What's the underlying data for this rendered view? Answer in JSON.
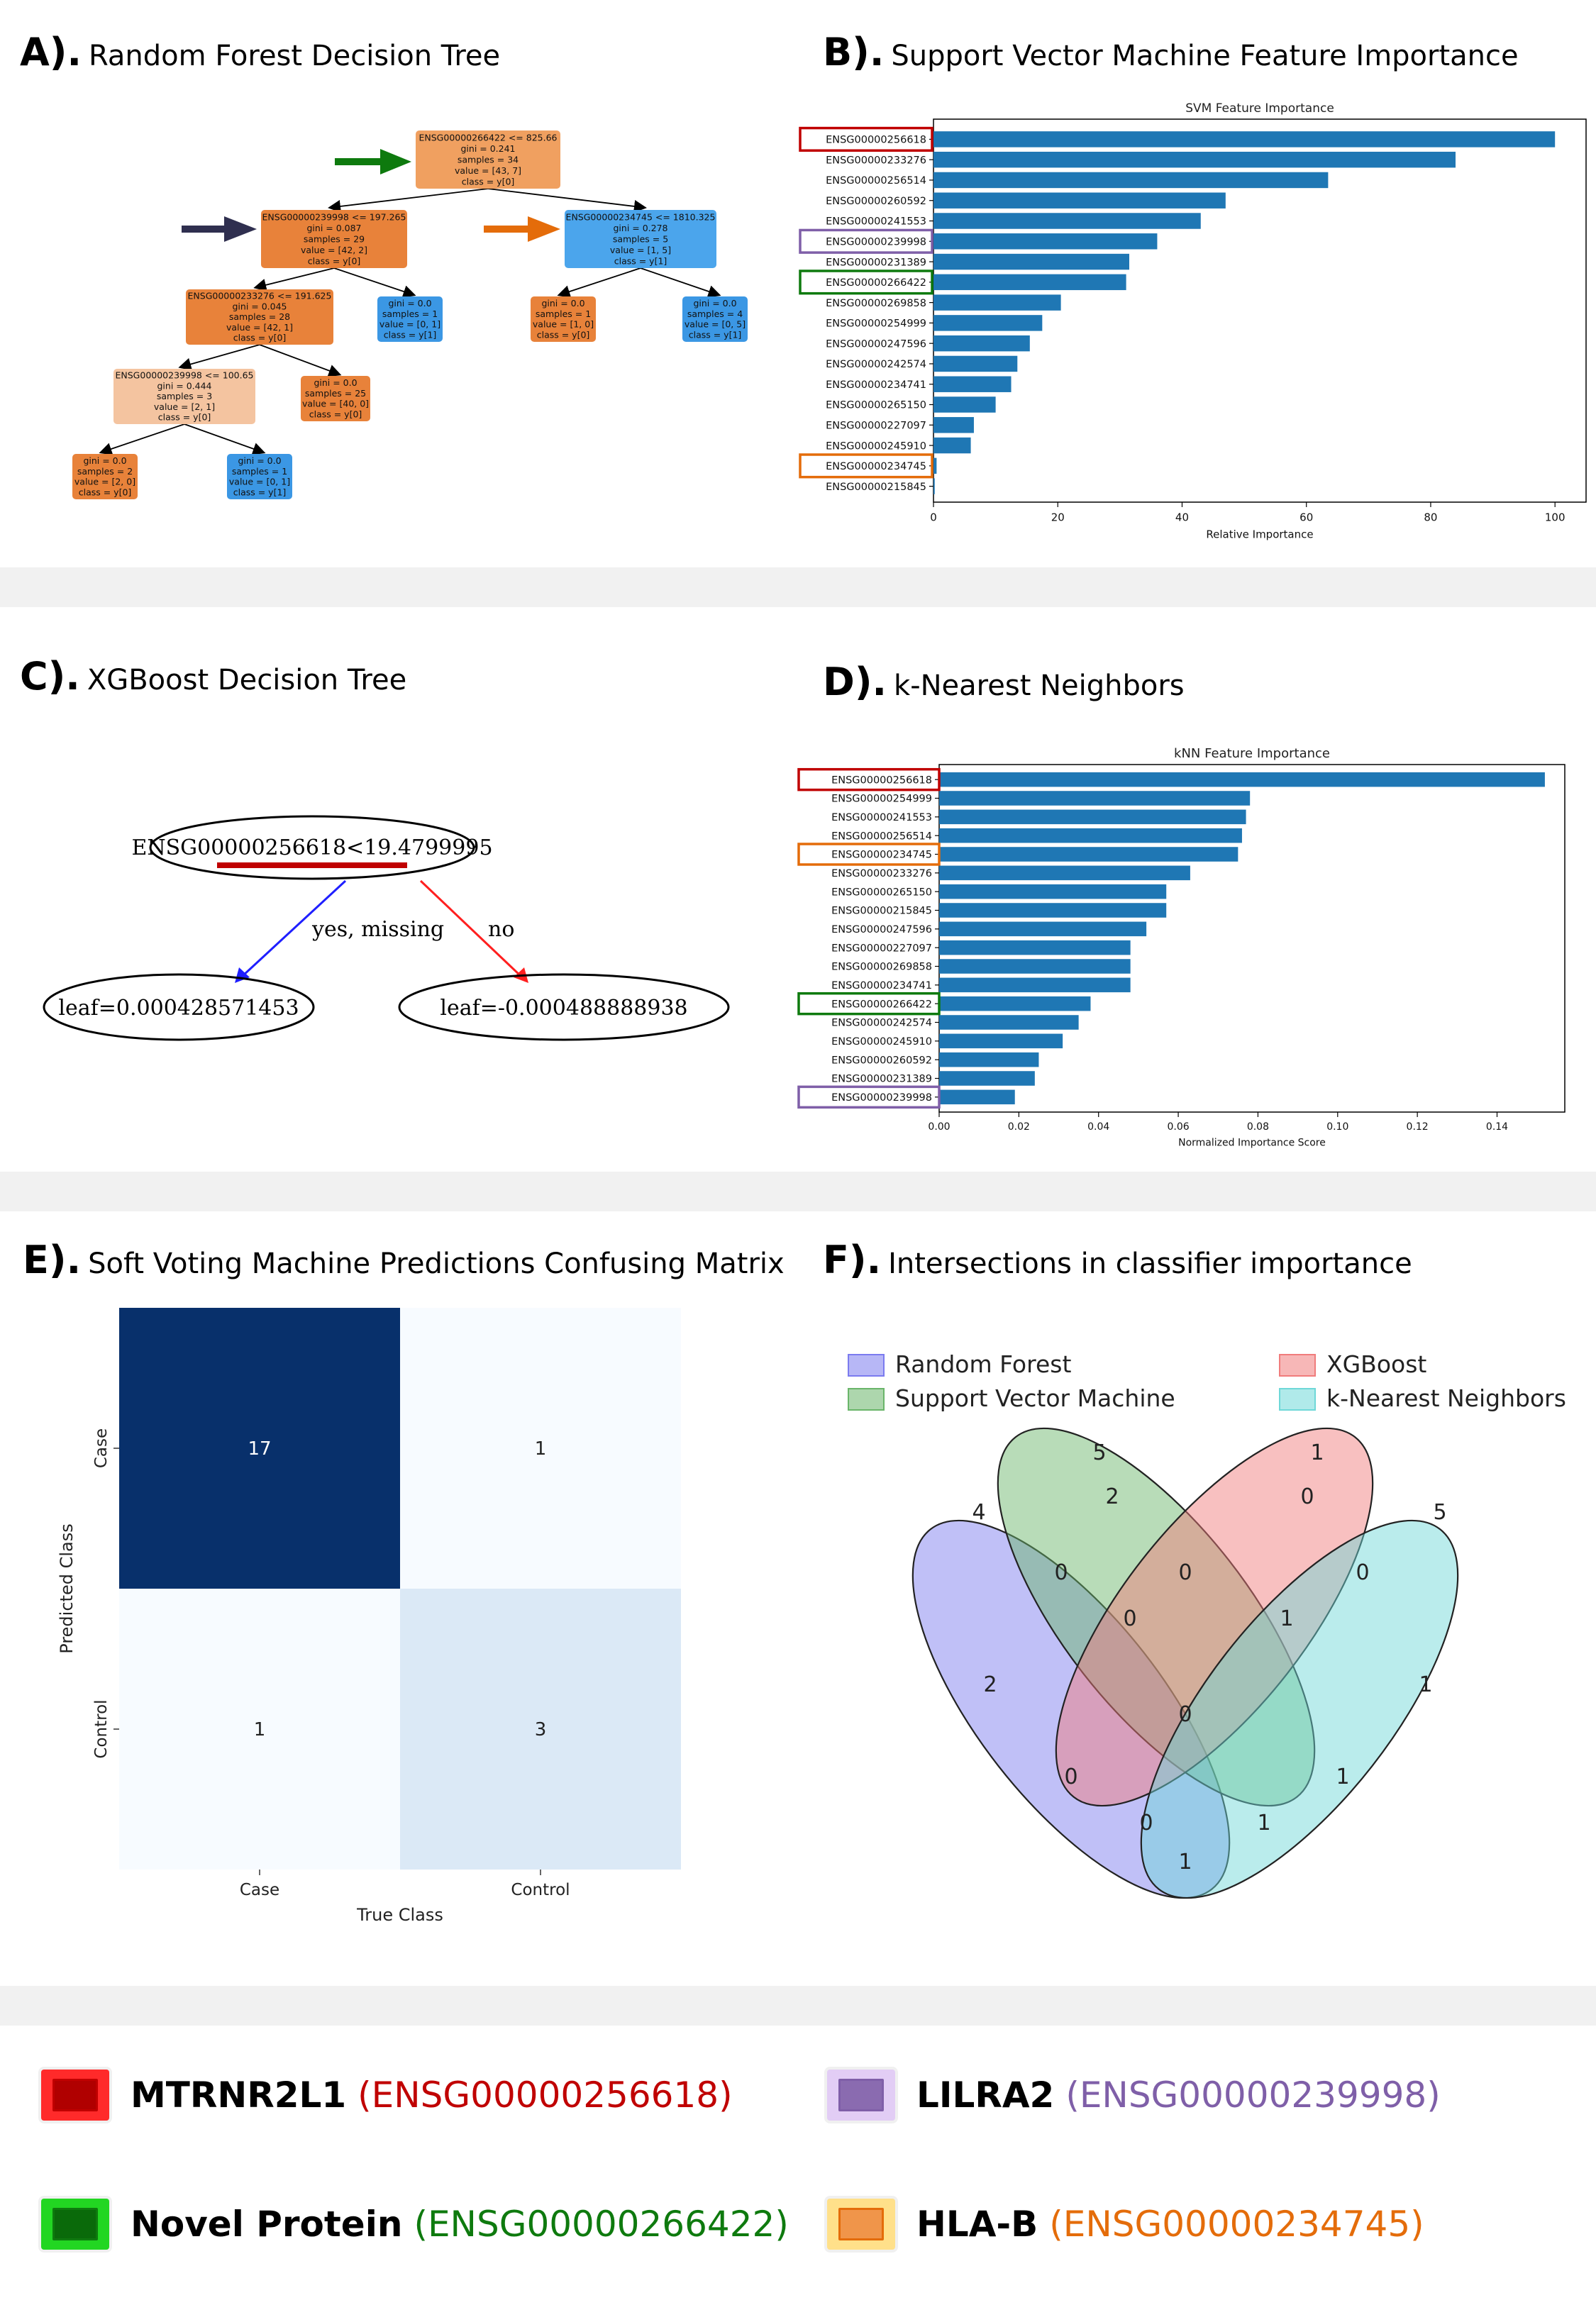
{
  "colors": {
    "red": "#c00000",
    "green": "#0e7a0e",
    "purple": "#7f5fa8",
    "orange": "#e46c0a",
    "bar": "#1f77b4",
    "heat_dark": "#08306b",
    "heat_light": "#f7fbff",
    "heat_mid": "#dbe9f6"
  },
  "panels": {
    "a": {
      "letter": "A).",
      "title": "Random Forest Decision Tree"
    },
    "b": {
      "letter": "B).",
      "title": "Support Vector Machine Feature Importance"
    },
    "c": {
      "letter": "C).",
      "title": "XGBoost Decision Tree"
    },
    "d": {
      "letter": "D).",
      "title": "k-Nearest Neighbors"
    },
    "e": {
      "letter": "E).",
      "title": "Soft Voting Machine Predictions Confusing Matrix"
    },
    "f": {
      "letter": "F).",
      "title": "Intersections in classifier importance"
    }
  },
  "rf_tree": {
    "nodes": [
      {
        "lines": [
          "ENSG00000266422 <= 825.66",
          "gini = 0.241",
          "samples = 34",
          "value = [43, 7]",
          "class = y[0]"
        ]
      },
      {
        "lines": [
          "ENSG00000239998 <= 197.265",
          "gini = 0.087",
          "samples = 29",
          "value = [42, 2]",
          "class = y[0]"
        ]
      },
      {
        "lines": [
          "ENSG00000234745 <= 1810.325",
          "gini = 0.278",
          "samples = 5",
          "value = [1, 5]",
          "class = y[1]"
        ]
      },
      {
        "lines": [
          "ENSG00000233276 <= 191.625",
          "gini = 0.045",
          "samples = 28",
          "value = [42, 1]",
          "class = y[0]"
        ]
      },
      {
        "lines": [
          "gini = 0.0",
          "samples = 1",
          "value = [0, 1]",
          "class = y[1]"
        ]
      },
      {
        "lines": [
          "gini = 0.0",
          "samples = 1",
          "value = [1, 0]",
          "class = y[0]"
        ]
      },
      {
        "lines": [
          "gini = 0.0",
          "samples = 4",
          "value = [0, 5]",
          "class = y[1]"
        ]
      },
      {
        "lines": [
          "ENSG00000239998 <= 100.65",
          "gini = 0.444",
          "samples = 3",
          "value = [2, 1]",
          "class = y[0]"
        ]
      },
      {
        "lines": [
          "gini = 0.0",
          "samples = 25",
          "value = [40, 0]",
          "class = y[0]"
        ]
      },
      {
        "lines": [
          "gini = 0.0",
          "samples = 2",
          "value = [2, 0]",
          "class = y[0]"
        ]
      },
      {
        "lines": [
          "gini = 0.0",
          "samples = 1",
          "value = [0, 1]",
          "class = y[1]"
        ]
      }
    ]
  },
  "xgb_tree": {
    "root": "ENSG00000256618<19.4799995",
    "left_leaf": "leaf=0.000428571453",
    "right_leaf": "leaf=-0.000488888938",
    "yes_label": "yes, missing",
    "no_label": "no"
  },
  "chart_data": [
    {
      "id": "svm",
      "type": "bar",
      "orientation": "horizontal",
      "title": "SVM Feature Importance",
      "xlabel": "Relative Importance",
      "ylabel": "",
      "xlim": [
        0,
        105
      ],
      "xticks": [
        "0",
        "20",
        "40",
        "60",
        "80",
        "100"
      ],
      "categories": [
        "ENSG00000256618",
        "ENSG00000233276",
        "ENSG00000256514",
        "ENSG00000260592",
        "ENSG00000241553",
        "ENSG00000239998",
        "ENSG00000231389",
        "ENSG00000266422",
        "ENSG00000269858",
        "ENSG00000254999",
        "ENSG00000247596",
        "ENSG00000242574",
        "ENSG00000234741",
        "ENSG00000265150",
        "ENSG00000227097",
        "ENSG00000245910",
        "ENSG00000234745",
        "ENSG00000215845"
      ],
      "values": [
        100,
        84,
        63.5,
        47,
        43,
        36,
        31.5,
        31,
        20.5,
        17.5,
        15.5,
        13.5,
        12.5,
        10,
        6.5,
        6,
        0.5,
        0.2
      ]
    },
    {
      "id": "knn",
      "type": "bar",
      "orientation": "horizontal",
      "title": "kNN Feature Importance",
      "xlabel": "Normalized Importance Score",
      "ylabel": "",
      "xlim": [
        0,
        0.157
      ],
      "xticks": [
        "0.00",
        "0.02",
        "0.04",
        "0.06",
        "0.08",
        "0.10",
        "0.12",
        "0.14"
      ],
      "categories": [
        "ENSG00000256618",
        "ENSG00000254999",
        "ENSG00000241553",
        "ENSG00000256514",
        "ENSG00000234745",
        "ENSG00000233276",
        "ENSG00000265150",
        "ENSG00000215845",
        "ENSG00000247596",
        "ENSG00000227097",
        "ENSG00000269858",
        "ENSG00000234741",
        "ENSG00000266422",
        "ENSG00000242574",
        "ENSG00000245910",
        "ENSG00000260592",
        "ENSG00000231389",
        "ENSG00000239998"
      ],
      "values": [
        0.152,
        0.078,
        0.077,
        0.076,
        0.075,
        0.063,
        0.057,
        0.057,
        0.052,
        0.048,
        0.048,
        0.048,
        0.038,
        0.035,
        0.031,
        0.025,
        0.024,
        0.019
      ]
    },
    {
      "id": "confusion",
      "type": "heatmap",
      "title": "Soft Voting Machine Predictions Confusing Matrix",
      "xlabel": "True Class",
      "ylabel": "Predicted Class",
      "x_categories": [
        "Case",
        "Control"
      ],
      "y_categories": [
        "Case",
        "Control"
      ],
      "values": [
        [
          17,
          1
        ],
        [
          1,
          3
        ]
      ]
    },
    {
      "id": "venn",
      "type": "venn",
      "title": "Intersections in classifier importance",
      "sets": [
        {
          "name": "Random Forest",
          "color": "#7b7bef",
          "total": "4"
        },
        {
          "name": "Support Vector Machine",
          "color": "#6ab56a",
          "total": "5"
        },
        {
          "name": "XGBoost",
          "color": "#f07c7c",
          "total": "1"
        },
        {
          "name": "k-Nearest Neighbors",
          "color": "#6fd8d8",
          "total": "5"
        }
      ],
      "regions": [
        {
          "sets": "RF only",
          "value": "2"
        },
        {
          "sets": "SVM only",
          "value": "2"
        },
        {
          "sets": "XGB only",
          "value": "0"
        },
        {
          "sets": "kNN only",
          "value": "1"
        },
        {
          "sets": "RF & SVM",
          "value": "0"
        },
        {
          "sets": "SVM & XGB",
          "value": "0"
        },
        {
          "sets": "XGB & kNN",
          "value": "0"
        },
        {
          "sets": "RF & SVM & XGB",
          "value": "0"
        },
        {
          "sets": "SVM & XGB & kNN",
          "value": "1"
        },
        {
          "sets": "all four",
          "value": "0"
        },
        {
          "sets": "RF & XGB",
          "value": "0"
        },
        {
          "sets": "SVM & kNN",
          "value": "1"
        },
        {
          "sets": "RF & XGB & kNN",
          "value": "0"
        },
        {
          "sets": "RF & SVM & kNN",
          "value": "1"
        },
        {
          "sets": "RF & kNN",
          "value": "1"
        }
      ]
    }
  ],
  "gene_legend": [
    {
      "name": "MTRNR2L1",
      "id": "(ENSG00000256618)",
      "color": "#c00000",
      "inner": "#b00000",
      "glow": "#ff2a2a"
    },
    {
      "name": "LILRA2",
      "id": "(ENSG00000239998)",
      "color": "#7f5fa8",
      "inner": "#8a6bb0",
      "glow": "#e2cdf5"
    },
    {
      "name": "Novel Protein",
      "id": "(ENSG00000266422)",
      "color": "#0e7a0e",
      "inner": "#0a6a0a",
      "glow": "#22d622"
    },
    {
      "name": "HLA-B",
      "id": "(ENSG00000234745)",
      "color": "#e46c0a",
      "inner": "#f0954a",
      "glow": "#ffe08a"
    }
  ]
}
